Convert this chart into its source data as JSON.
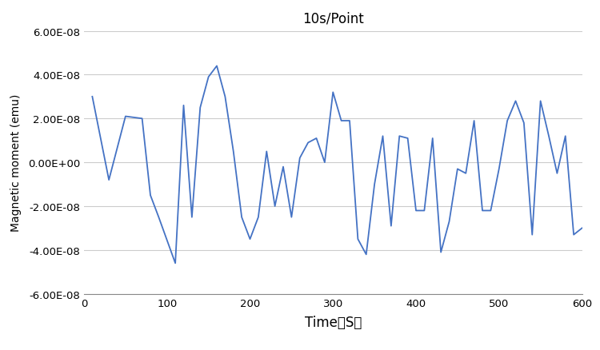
{
  "title": "10s/Point",
  "xlabel": "Time（S）",
  "ylabel": "Magnetic moment (emu)",
  "line_color": "#4472C4",
  "line_width": 1.3,
  "xlim": [
    0,
    600
  ],
  "ylim": [
    -6e-08,
    6e-08
  ],
  "xticks": [
    0,
    100,
    200,
    300,
    400,
    500,
    600
  ],
  "yticks": [
    -6e-08,
    -4e-08,
    -2e-08,
    0.0,
    2e-08,
    4e-08,
    6e-08
  ],
  "background_color": "#ffffff",
  "x": [
    10,
    30,
    50,
    70,
    80,
    90,
    110,
    120,
    130,
    140,
    150,
    160,
    170,
    180,
    190,
    200,
    210,
    220,
    230,
    240,
    250,
    260,
    270,
    280,
    290,
    300,
    310,
    320,
    330,
    340,
    350,
    360,
    370,
    380,
    390,
    400,
    410,
    420,
    430,
    440,
    450,
    460,
    470,
    480,
    490,
    500,
    510,
    520,
    530,
    540,
    550,
    560,
    570,
    580,
    590,
    600
  ],
  "y": [
    3e-08,
    -8e-09,
    2.1e-08,
    2e-08,
    -1.5e-08,
    -2.5e-08,
    -4.6e-08,
    2.6e-08,
    -2.5e-08,
    2.5e-08,
    3.9e-08,
    4.4e-08,
    3e-08,
    5e-09,
    -2.5e-08,
    -3.5e-08,
    -2.5e-08,
    5e-09,
    -2e-08,
    -2e-09,
    -2.5e-08,
    2e-09,
    9e-09,
    1.1e-08,
    0.0,
    3.2e-08,
    1.9e-08,
    1.9e-08,
    -3.5e-08,
    -4.2e-08,
    -1e-08,
    1.2e-08,
    -2.9e-08,
    1.2e-08,
    1.1e-08,
    -2.2e-08,
    -2.2e-08,
    1.1e-08,
    -4.1e-08,
    -2.7e-08,
    -3e-09,
    -5e-09,
    1.9e-08,
    -2.2e-08,
    -2.2e-08,
    -3e-09,
    1.9e-08,
    2.8e-08,
    1.8e-08,
    -3.3e-08,
    2.8e-08,
    1.2e-08,
    -5e-09,
    1.2e-08,
    -3.3e-08,
    -3e-08
  ]
}
